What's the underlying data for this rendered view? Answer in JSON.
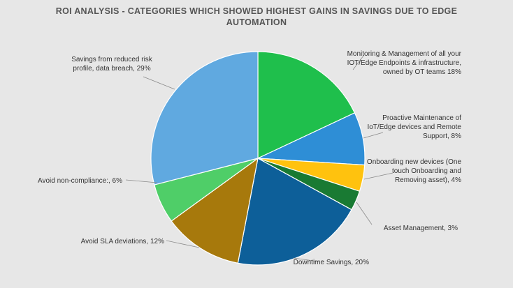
{
  "chart_data": {
    "type": "pie",
    "title_lines": [
      "ROI ANALYSIS - CATEGORIES WHICH SHOWED HIGHEST GAINS IN SAVINGS DUE TO EDGE",
      "AUTOMATION"
    ],
    "slices": [
      {
        "label_lines": [
          "Monitoring & Management of all your",
          "IOT/Edge Endpoints & infrastructure,",
          "owned by OT teams  18%"
        ],
        "value": 18,
        "color": "#1fbf4c"
      },
      {
        "label_lines": [
          "Proactive Maintenance of",
          "IoT/Edge devices and Remote",
          "Support, 8%"
        ],
        "value": 8,
        "color": "#2e8ed6"
      },
      {
        "label_lines": [
          "Onboarding new devices (One",
          "touch Onboarding and",
          "Removing asset), 4%"
        ],
        "value": 4,
        "color": "#ffc20e"
      },
      {
        "label_lines": [
          "Asset Management, 3%"
        ],
        "value": 3,
        "color": "#197a33"
      },
      {
        "label_lines": [
          "Downtime Savings, 20%"
        ],
        "value": 20,
        "color": "#0d5f99"
      },
      {
        "label_lines": [
          "Avoid SLA deviations, 12%"
        ],
        "value": 12,
        "color": "#a7790c"
      },
      {
        "label_lines": [
          "Avoid non-compliance:, 6%"
        ],
        "value": 6,
        "color": "#4fce68"
      },
      {
        "label_lines": [
          "Savings from reduced risk",
          "profile, data breach, 29%"
        ],
        "value": 29,
        "color": "#60a9e0"
      }
    ],
    "start_angle_deg": 0,
    "direction": "clockwise",
    "legend": "none"
  }
}
